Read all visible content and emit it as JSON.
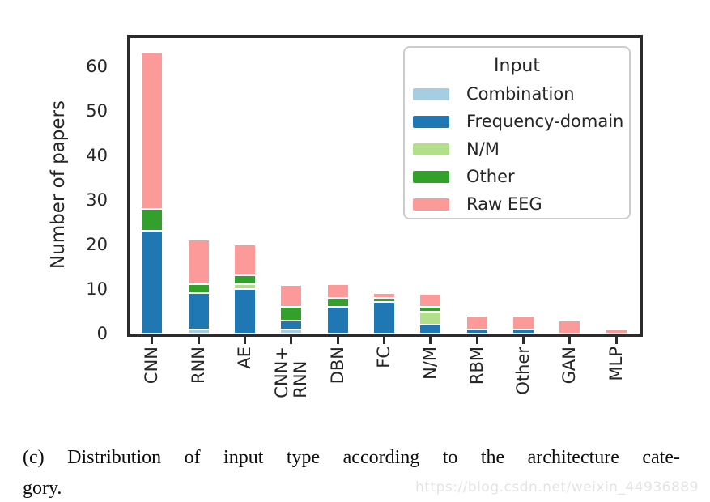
{
  "chart_data": {
    "type": "stacked_bar",
    "title": "",
    "xlabel": "",
    "ylabel": "Number of papers",
    "categories": [
      "CNN",
      "RNN",
      "AE",
      "CNN+\nRNN",
      "DBN",
      "FC",
      "N/M",
      "RBM",
      "Other",
      "GAN",
      "MLP"
    ],
    "series": [
      {
        "name": "Combination",
        "color": "#a6cee3",
        "values": [
          0,
          1,
          0,
          1,
          0,
          0,
          0,
          0,
          0,
          0,
          0
        ]
      },
      {
        "name": "Frequency-domain",
        "color": "#1f78b4",
        "values": [
          23,
          8,
          10,
          2,
          6,
          7,
          2,
          1,
          1,
          0,
          0
        ]
      },
      {
        "name": "N/M",
        "color": "#b2df8a",
        "values": [
          0,
          0,
          1,
          0,
          0,
          0,
          3,
          0,
          0,
          0,
          0
        ]
      },
      {
        "name": "Other",
        "color": "#33a02c",
        "values": [
          5,
          2,
          2,
          3,
          2,
          1,
          1,
          0,
          0,
          0,
          0
        ]
      },
      {
        "name": "Raw EEG",
        "color": "#fb9a99",
        "values": [
          35,
          10,
          7,
          5,
          3,
          1,
          3,
          3,
          3,
          3,
          1
        ]
      }
    ],
    "totals": [
      63,
      21,
      20,
      11,
      11,
      9,
      9,
      4,
      4,
      3,
      1
    ],
    "yticks": [
      0,
      10,
      20,
      30,
      40,
      50,
      60
    ],
    "ylim": [
      0,
      66.7
    ],
    "grid": false,
    "legend": {
      "title": "Input",
      "position": "upper-right"
    }
  },
  "caption": {
    "line1": "(c) Distribution of input type according to the architecture cate-",
    "line2": "gory."
  },
  "watermark": "https://blog.csdn.net/weixin_44936889"
}
